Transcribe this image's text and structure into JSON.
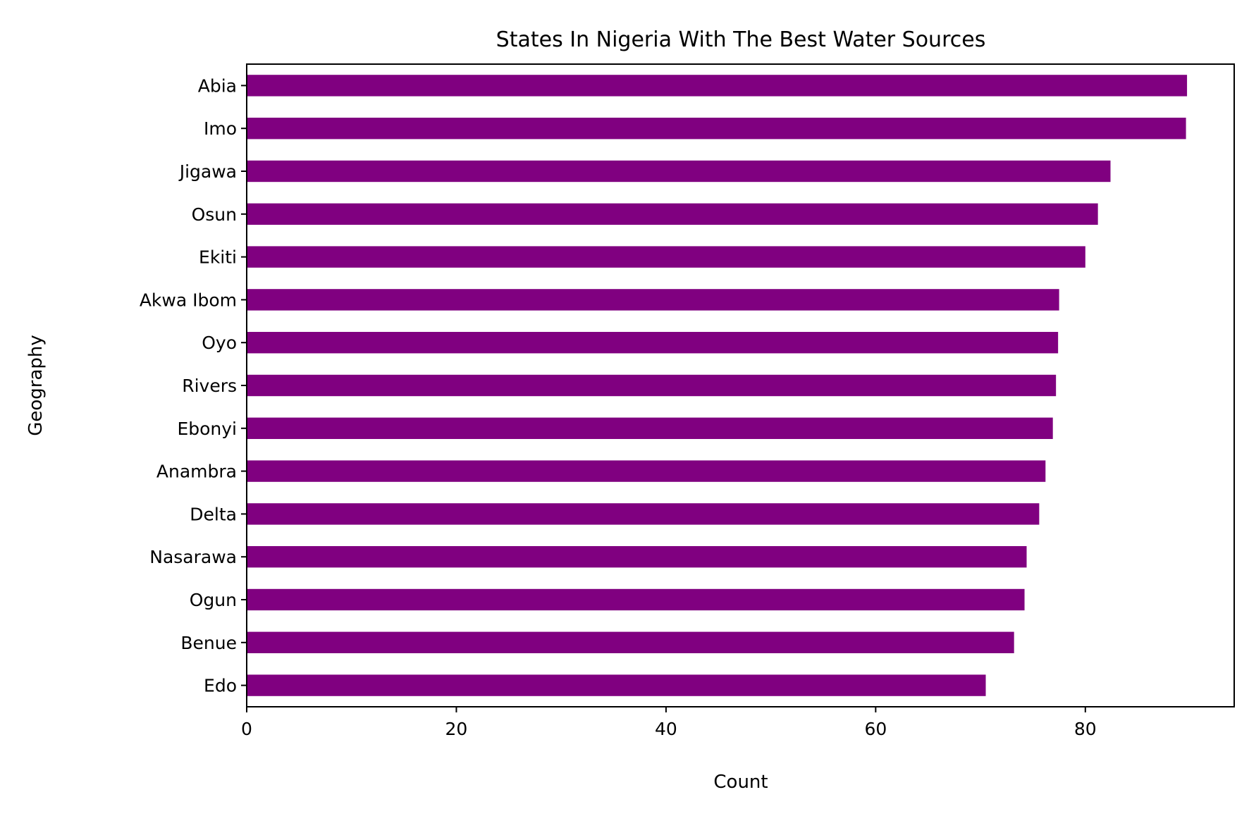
{
  "chart_data": {
    "type": "bar",
    "orientation": "horizontal",
    "title": "States In Nigeria With The Best Water Sources",
    "xlabel": "Count",
    "ylabel": "Geography",
    "categories": [
      "Abia",
      "Imo",
      "Jigawa",
      "Osun",
      "Ekiti",
      "Akwa Ibom",
      "Oyo",
      "Rivers",
      "Ebonyi",
      "Anambra",
      "Delta",
      "Nasarawa",
      "Ogun",
      "Benue",
      "Edo"
    ],
    "values": [
      89.7,
      89.6,
      82.4,
      81.2,
      80.0,
      77.5,
      77.4,
      77.2,
      76.9,
      76.2,
      75.6,
      74.4,
      74.2,
      73.2,
      70.5
    ],
    "xticks": [
      0,
      20,
      40,
      60,
      80
    ],
    "xlim": [
      0,
      94.2
    ],
    "bar_color": "#800080",
    "grid": false,
    "legend": "none"
  }
}
